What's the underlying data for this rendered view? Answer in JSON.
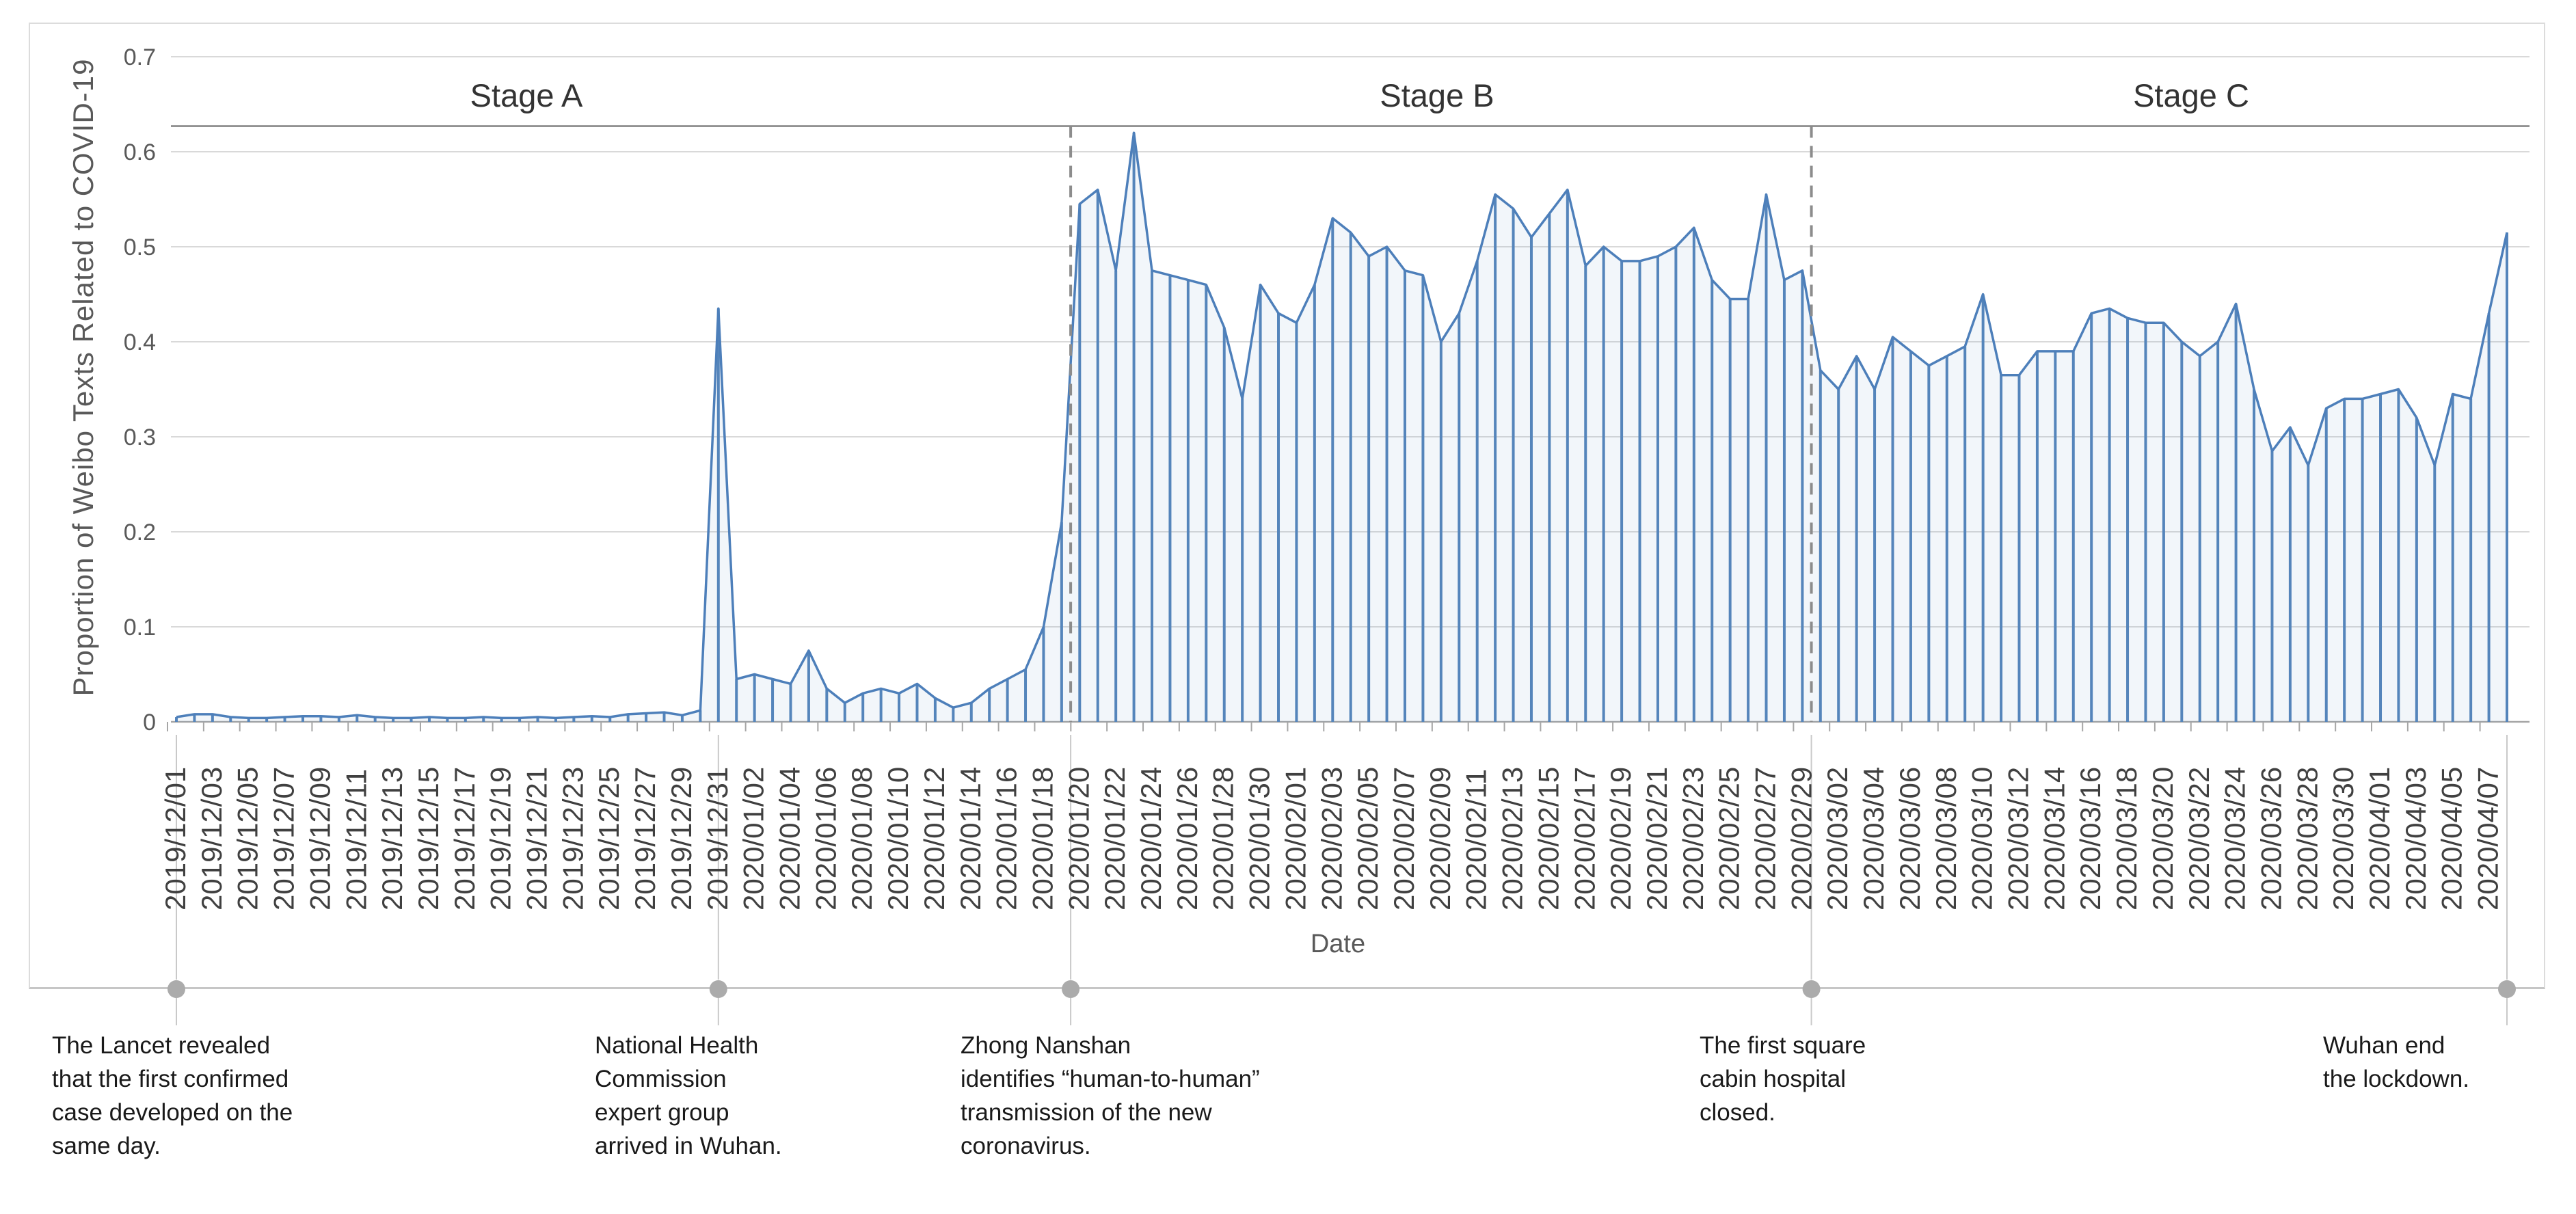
{
  "chart_data": {
    "type": "line",
    "subtype": "line-with-vertical-drop-lines",
    "title": "",
    "xlabel": "Date",
    "ylabel": "Proportion of Weibo Texts Related to COVID-19",
    "ylim": [
      0,
      0.7
    ],
    "yticks": [
      0,
      0.1,
      0.2,
      0.3,
      0.4,
      0.5,
      0.6,
      0.7
    ],
    "ytick_labels": [
      "0",
      "0.1",
      "0.2",
      "0.3",
      "0.4",
      "0.5",
      "0.6",
      "0.7"
    ],
    "x_tick_label_every_n_days": 2,
    "grid": "horizontal",
    "legend": "none",
    "colors": {
      "line": "#4d7fba",
      "stem": "#5585bb",
      "area_fill": "rgba(93,140,190,0.08)",
      "gridline": "#d9d9d9",
      "axis_line": "#a6a6a6",
      "stage_line": "#808080",
      "divider_dashed": "#8c8c8c",
      "connector": "#c9c9c9",
      "event_dot": "#ababab",
      "tick_text": "#404040",
      "axis_title_text": "#595959",
      "stage_text": "#333333",
      "annotation_text": "#1a1a1a"
    },
    "stages": [
      {
        "label": "Stage A"
      },
      {
        "label": "Stage B"
      },
      {
        "label": "Stage C"
      }
    ],
    "stage_underline_value": 0.627,
    "dividers": [
      {
        "before_date": "2020/01/20"
      },
      {
        "before_date": "2020/03/01"
      }
    ],
    "events": [
      {
        "date": "2019/12/01",
        "boundary": false,
        "lines": [
          "The Lancet revealed",
          "that the first confirmed",
          "case developed on the",
          "same day."
        ]
      },
      {
        "date": "2019/12/31",
        "boundary": false,
        "lines": [
          "National Health",
          "Commission",
          "expert group",
          "arrived in Wuhan."
        ]
      },
      {
        "date": "2020/01/20",
        "boundary": true,
        "lines": [
          "Zhong Nanshan",
          "identifies “human-to-human”",
          "transmission of the new",
          "coronavirus."
        ]
      },
      {
        "date": "2020/03/01",
        "boundary": true,
        "lines": [
          "The first square",
          "cabin hospital",
          "closed."
        ]
      },
      {
        "date": "2020/04/08",
        "boundary": false,
        "lines": [
          "Wuhan end",
          "the lockdown."
        ]
      }
    ],
    "points": [
      [
        "2019/12/01",
        0.005
      ],
      [
        "2019/12/02",
        0.008
      ],
      [
        "2019/12/03",
        0.008
      ],
      [
        "2019/12/04",
        0.005
      ],
      [
        "2019/12/05",
        0.004
      ],
      [
        "2019/12/06",
        0.004
      ],
      [
        "2019/12/07",
        0.005
      ],
      [
        "2019/12/08",
        0.006
      ],
      [
        "2019/12/09",
        0.006
      ],
      [
        "2019/12/10",
        0.005
      ],
      [
        "2019/12/11",
        0.007
      ],
      [
        "2019/12/12",
        0.005
      ],
      [
        "2019/12/13",
        0.004
      ],
      [
        "2019/12/14",
        0.004
      ],
      [
        "2019/12/15",
        0.005
      ],
      [
        "2019/12/16",
        0.004
      ],
      [
        "2019/12/17",
        0.004
      ],
      [
        "2019/12/18",
        0.005
      ],
      [
        "2019/12/19",
        0.004
      ],
      [
        "2019/12/20",
        0.004
      ],
      [
        "2019/12/21",
        0.005
      ],
      [
        "2019/12/22",
        0.004
      ],
      [
        "2019/12/23",
        0.005
      ],
      [
        "2019/12/24",
        0.006
      ],
      [
        "2019/12/25",
        0.005
      ],
      [
        "2019/12/26",
        0.008
      ],
      [
        "2019/12/27",
        0.009
      ],
      [
        "2019/12/28",
        0.01
      ],
      [
        "2019/12/29",
        0.007
      ],
      [
        "2019/12/30",
        0.012
      ],
      [
        "2019/12/31",
        0.435
      ],
      [
        "2020/01/01",
        0.045
      ],
      [
        "2020/01/02",
        0.05
      ],
      [
        "2020/01/03",
        0.045
      ],
      [
        "2020/01/04",
        0.04
      ],
      [
        "2020/01/05",
        0.075
      ],
      [
        "2020/01/06",
        0.035
      ],
      [
        "2020/01/07",
        0.02
      ],
      [
        "2020/01/08",
        0.03
      ],
      [
        "2020/01/09",
        0.035
      ],
      [
        "2020/01/10",
        0.03
      ],
      [
        "2020/01/11",
        0.04
      ],
      [
        "2020/01/12",
        0.025
      ],
      [
        "2020/01/13",
        0.015
      ],
      [
        "2020/01/14",
        0.02
      ],
      [
        "2020/01/15",
        0.035
      ],
      [
        "2020/01/16",
        0.045
      ],
      [
        "2020/01/17",
        0.055
      ],
      [
        "2020/01/18",
        0.1
      ],
      [
        "2020/01/19",
        0.21
      ],
      [
        "2020/01/20",
        0.545
      ],
      [
        "2020/01/21",
        0.56
      ],
      [
        "2020/01/22",
        0.475
      ],
      [
        "2020/01/23",
        0.62
      ],
      [
        "2020/01/24",
        0.475
      ],
      [
        "2020/01/25",
        0.47
      ],
      [
        "2020/01/26",
        0.465
      ],
      [
        "2020/01/27",
        0.46
      ],
      [
        "2020/01/28",
        0.415
      ],
      [
        "2020/01/29",
        0.34
      ],
      [
        "2020/01/30",
        0.46
      ],
      [
        "2020/01/31",
        0.43
      ],
      [
        "2020/02/01",
        0.42
      ],
      [
        "2020/02/02",
        0.46
      ],
      [
        "2020/02/03",
        0.53
      ],
      [
        "2020/02/04",
        0.515
      ],
      [
        "2020/02/05",
        0.49
      ],
      [
        "2020/02/06",
        0.5
      ],
      [
        "2020/02/07",
        0.475
      ],
      [
        "2020/02/08",
        0.47
      ],
      [
        "2020/02/09",
        0.4
      ],
      [
        "2020/02/10",
        0.43
      ],
      [
        "2020/02/11",
        0.485
      ],
      [
        "2020/02/12",
        0.555
      ],
      [
        "2020/02/13",
        0.54
      ],
      [
        "2020/02/14",
        0.51
      ],
      [
        "2020/02/15",
        0.535
      ],
      [
        "2020/02/16",
        0.56
      ],
      [
        "2020/02/17",
        0.48
      ],
      [
        "2020/02/18",
        0.5
      ],
      [
        "2020/02/19",
        0.485
      ],
      [
        "2020/02/20",
        0.485
      ],
      [
        "2020/02/21",
        0.49
      ],
      [
        "2020/02/22",
        0.5
      ],
      [
        "2020/02/23",
        0.52
      ],
      [
        "2020/02/24",
        0.465
      ],
      [
        "2020/02/25",
        0.445
      ],
      [
        "2020/02/26",
        0.445
      ],
      [
        "2020/02/27",
        0.555
      ],
      [
        "2020/02/28",
        0.465
      ],
      [
        "2020/02/29",
        0.475
      ],
      [
        "2020/03/01",
        0.37
      ],
      [
        "2020/03/02",
        0.35
      ],
      [
        "2020/03/03",
        0.385
      ],
      [
        "2020/03/04",
        0.35
      ],
      [
        "2020/03/05",
        0.405
      ],
      [
        "2020/03/06",
        0.39
      ],
      [
        "2020/03/07",
        0.375
      ],
      [
        "2020/03/08",
        0.385
      ],
      [
        "2020/03/09",
        0.395
      ],
      [
        "2020/03/10",
        0.45
      ],
      [
        "2020/03/11",
        0.365
      ],
      [
        "2020/03/12",
        0.365
      ],
      [
        "2020/03/13",
        0.39
      ],
      [
        "2020/03/14",
        0.39
      ],
      [
        "2020/03/15",
        0.39
      ],
      [
        "2020/03/16",
        0.43
      ],
      [
        "2020/03/17",
        0.435
      ],
      [
        "2020/03/18",
        0.425
      ],
      [
        "2020/03/19",
        0.42
      ],
      [
        "2020/03/20",
        0.42
      ],
      [
        "2020/03/21",
        0.4
      ],
      [
        "2020/03/22",
        0.385
      ],
      [
        "2020/03/23",
        0.4
      ],
      [
        "2020/03/24",
        0.44
      ],
      [
        "2020/03/25",
        0.35
      ],
      [
        "2020/03/26",
        0.285
      ],
      [
        "2020/03/27",
        0.31
      ],
      [
        "2020/03/28",
        0.27
      ],
      [
        "2020/03/29",
        0.33
      ],
      [
        "2020/03/30",
        0.34
      ],
      [
        "2020/03/31",
        0.34
      ],
      [
        "2020/04/01",
        0.345
      ],
      [
        "2020/04/02",
        0.35
      ],
      [
        "2020/04/03",
        0.32
      ],
      [
        "2020/04/04",
        0.27
      ],
      [
        "2020/04/05",
        0.345
      ],
      [
        "2020/04/06",
        0.34
      ],
      [
        "2020/04/07",
        0.43
      ],
      [
        "2020/04/08",
        0.515
      ]
    ]
  }
}
